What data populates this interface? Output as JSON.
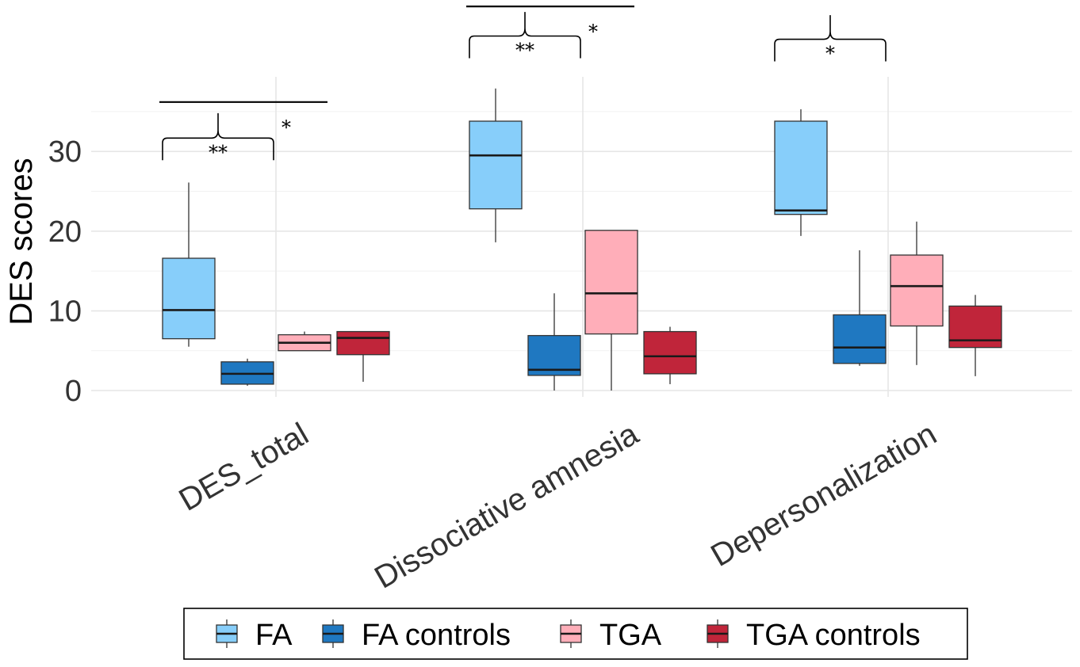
{
  "chart_data": {
    "type": "box",
    "ylabel": "DES scores",
    "xlabel": "",
    "ylim": [
      -1.5,
      37
    ],
    "y_ticks": [
      0,
      10,
      20,
      30
    ],
    "y_tick_labels": [
      "0",
      "10",
      "20",
      "30"
    ],
    "minor_gridlines": [
      5,
      15,
      25,
      35
    ],
    "categories": [
      "DES_total",
      "Dissociative amnesia",
      "Depersonalization"
    ],
    "legend_position": "bottom",
    "series": [
      {
        "name": "FA",
        "color": "#87CEFA",
        "boxes": [
          {
            "min": 5.5,
            "q1": 6.5,
            "median": 10.1,
            "q3": 16.6,
            "max": 26.1
          },
          {
            "min": 18.6,
            "q1": 22.8,
            "median": 29.5,
            "q3": 33.8,
            "max": 37.9
          },
          {
            "min": 19.4,
            "q1": 22.1,
            "median": 22.6,
            "q3": 33.8,
            "max": 35.3
          }
        ]
      },
      {
        "name": "FA controls",
        "color": "#1F78C1",
        "boxes": [
          {
            "min": 0.6,
            "q1": 0.8,
            "median": 2.1,
            "q3": 3.6,
            "max": 4.0
          },
          {
            "min": 0.0,
            "q1": 1.9,
            "median": 2.6,
            "q3": 6.9,
            "max": 12.2
          },
          {
            "min": 3.1,
            "q1": 3.4,
            "median": 5.4,
            "q3": 9.5,
            "max": 17.6
          }
        ]
      },
      {
        "name": "TGA",
        "color": "#FFAEB9",
        "boxes": [
          {
            "min": 5.0,
            "q1": 5.0,
            "median": 6.0,
            "q3": 7.0,
            "max": 7.4
          },
          {
            "min": 0.0,
            "q1": 7.1,
            "median": 12.2,
            "q3": 20.1,
            "max": 20.1
          },
          {
            "min": 3.2,
            "q1": 8.1,
            "median": 13.1,
            "q3": 17.0,
            "max": 21.2
          }
        ]
      },
      {
        "name": "TGA controls",
        "color": "#C0253A",
        "boxes": [
          {
            "min": 1.1,
            "q1": 4.5,
            "median": 6.6,
            "q3": 7.4,
            "max": 7.4
          },
          {
            "min": 0.8,
            "q1": 2.1,
            "median": 4.3,
            "q3": 7.4,
            "max": 8.0
          },
          {
            "min": 1.8,
            "q1": 5.4,
            "median": 6.3,
            "q3": 10.6,
            "max": 12.0
          }
        ]
      }
    ],
    "significance": [
      {
        "category_index": 0,
        "type": "bracket",
        "from_series": 0,
        "to_series": 1,
        "level": 28.9,
        "peak": 34.8,
        "label": "**"
      },
      {
        "category_index": 0,
        "type": "line",
        "from_series": 0,
        "to_series": 2,
        "level": 36.2,
        "label": "*"
      },
      {
        "category_index": 1,
        "type": "bracket",
        "from_series": 0,
        "to_series": 1,
        "level": 41.7,
        "peak": 47.5,
        "label": "**"
      },
      {
        "category_index": 1,
        "type": "line",
        "from_series": 0,
        "to_series": 2,
        "level": 48.2,
        "label": "*"
      },
      {
        "category_index": 2,
        "type": "bracket",
        "from_series": 0,
        "to_series": 1,
        "level": 41.3,
        "peak": 47.1,
        "label": "*"
      }
    ]
  }
}
